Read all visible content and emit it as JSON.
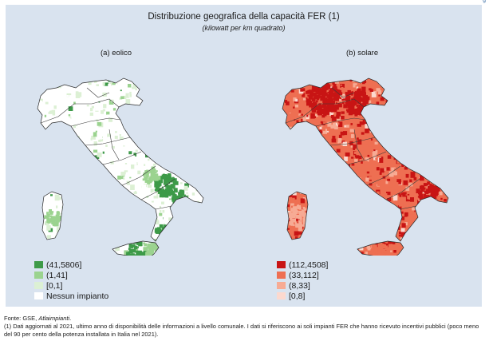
{
  "figure": {
    "title": "Distribuzione geografica della capacità FER (1)",
    "subtitle": "(kilowatt per km quadrato)",
    "panel_background": "#d9e3ef"
  },
  "maps": [
    {
      "caption": "(a) eolico",
      "legend": [
        {
          "label": "(41,5806]",
          "color": "#3d9a48"
        },
        {
          "label": "(1,41]",
          "color": "#9bd38f"
        },
        {
          "label": "[0,1]",
          "color": "#dcf0d4"
        },
        {
          "label": "Nessun impianto",
          "color": "#ffffff"
        }
      ]
    },
    {
      "caption": "(b) solare",
      "legend": [
        {
          "label": "(112,4508]",
          "color": "#c81414"
        },
        {
          "label": "(33,112]",
          "color": "#ee6f52"
        },
        {
          "label": "(8,33]",
          "color": "#f7ab94"
        },
        {
          "label": "[0,8]",
          "color": "#fcd9cf"
        }
      ]
    }
  ],
  "source": {
    "prefix": "Fonte: GSE,",
    "italic": "Atlaimpianti",
    "suffix": "."
  },
  "note": "(1) Dati aggiornati al 2021, ultimo anno di disponibilità delle informazioni a livello comunale. I dati si riferiscono ai soli impianti FER che hanno ricevuto incentivi pubblici (poco meno del 90 per cento della potenza installata in Italia nel 2021).",
  "page_mark": "g"
}
